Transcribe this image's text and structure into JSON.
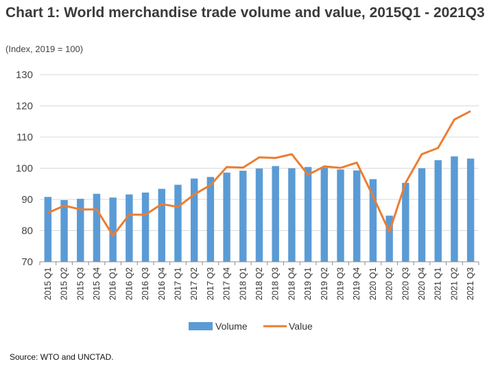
{
  "title": "Chart 1: World merchandise trade volume and value, 2015Q1 - 2021Q3",
  "subtitle": "(Index, 2019 = 100)",
  "source": "Source: WTO and UNCTAD.",
  "chart_data": {
    "type": "bar",
    "categories": [
      "2015 Q1",
      "2015 Q2",
      "2015 Q3",
      "2015 Q4",
      "2016 Q1",
      "2016 Q2",
      "2016 Q3",
      "2016 Q4",
      "2017 Q1",
      "2017 Q2",
      "2017 Q3",
      "2017 Q4",
      "2018 Q1",
      "2018 Q2",
      "2018 Q3",
      "2018 Q4",
      "2019 Q1",
      "2019 Q2",
      "2019 Q3",
      "2019 Q4",
      "2020 Q1",
      "2020 Q2",
      "2020 Q3",
      "2020 Q4",
      "2021 Q1",
      "2021 Q2",
      "2021 Q3"
    ],
    "series": [
      {
        "name": "Volume",
        "type": "bar",
        "color": "#5B9BD5",
        "values": [
          90.8,
          89.8,
          90.2,
          91.8,
          90.6,
          91.6,
          92.2,
          93.4,
          94.7,
          96.7,
          97.2,
          98.6,
          99.2,
          99.9,
          100.7,
          100.0,
          100.4,
          100.2,
          99.6,
          99.3,
          96.5,
          84.8,
          95.3,
          100.0,
          102.6,
          103.8,
          103.1
        ]
      },
      {
        "name": "Value",
        "type": "line",
        "color": "#ED7D31",
        "values": [
          85.7,
          88.0,
          86.8,
          86.8,
          78.4,
          85.1,
          85.1,
          88.5,
          87.6,
          91.6,
          94.6,
          100.4,
          100.2,
          103.5,
          103.3,
          104.5,
          97.9,
          100.6,
          100.1,
          101.8,
          91.0,
          79.6,
          95.3,
          104.5,
          106.5,
          115.6,
          118.3
        ]
      }
    ],
    "ylim": [
      70,
      130
    ],
    "yticks": [
      70,
      80,
      90,
      100,
      110,
      120,
      130
    ],
    "grid": true,
    "legend_position": "bottom-center"
  }
}
